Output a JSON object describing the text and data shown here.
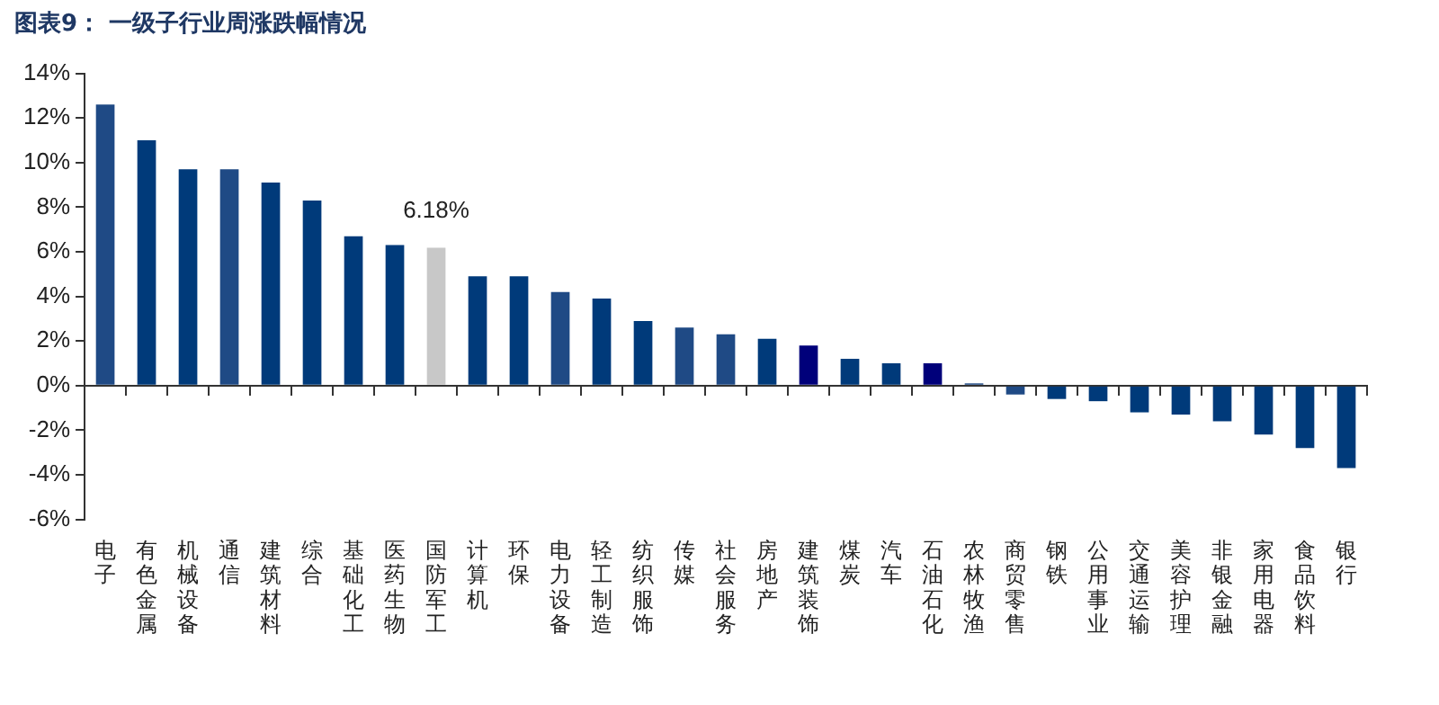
{
  "chart_data": {
    "type": "bar",
    "title": "图表9： 一级子行业周涨跌幅情况",
    "categories": [
      "电子",
      "有色金属",
      "机械设备",
      "通信",
      "建筑材料",
      "综合",
      "基础化工",
      "医药生物",
      "国防军工",
      "计算机",
      "环保",
      "电力设备",
      "轻工制造",
      "纺织服饰",
      "传媒",
      "社会服务",
      "房地产",
      "建筑装饰",
      "煤炭",
      "汽车",
      "石油石化",
      "农林牧渔",
      "商贸零售",
      "钢铁",
      "公用事业",
      "交通运输",
      "美容护理",
      "非银金融",
      "家用电器",
      "食品饮料",
      "银行"
    ],
    "values": [
      12.6,
      11.0,
      9.7,
      9.7,
      9.1,
      8.3,
      6.7,
      6.3,
      6.18,
      4.9,
      4.9,
      4.2,
      3.9,
      2.9,
      2.6,
      2.3,
      2.1,
      1.8,
      1.2,
      1.0,
      1.0,
      0.1,
      -0.4,
      -0.6,
      -0.7,
      -1.2,
      -1.3,
      -1.6,
      -2.2,
      -2.8,
      -3.7
    ],
    "colors": [
      "#1f4a85",
      "#003a7a",
      "#003a7a",
      "#1f4a85",
      "#003a7a",
      "#003a7a",
      "#003a7a",
      "#003a7a",
      "#c8c8c8",
      "#003a7a",
      "#003a7a",
      "#1f4a85",
      "#003a7a",
      "#003a7a",
      "#1f4a85",
      "#1f4a85",
      "#003a7a",
      "#00007a",
      "#003a7a",
      "#003a7a",
      "#00007a",
      "#1f4a85",
      "#1f4a85",
      "#003a7a",
      "#003a7a",
      "#003a7a",
      "#003a7a",
      "#003a7a",
      "#003a7a",
      "#003a7a",
      "#003a7a"
    ],
    "value_labels": [
      null,
      null,
      null,
      null,
      null,
      null,
      null,
      null,
      "6.18%",
      null,
      null,
      null,
      null,
      null,
      null,
      null,
      null,
      null,
      null,
      null,
      null,
      null,
      null,
      null,
      null,
      null,
      null,
      null,
      null,
      null,
      null
    ],
    "ylim": [
      -6,
      14
    ],
    "yticks": [
      {
        "value": -6,
        "label": "-6%"
      },
      {
        "value": -4,
        "label": "-4%"
      },
      {
        "value": -2,
        "label": "-2%"
      },
      {
        "value": 0,
        "label": "0%"
      },
      {
        "value": 2,
        "label": "2%"
      },
      {
        "value": 4,
        "label": "4%"
      },
      {
        "value": 6,
        "label": "6%"
      },
      {
        "value": 8,
        "label": "8%"
      },
      {
        "value": 10,
        "label": "10%"
      },
      {
        "value": 12,
        "label": "12%"
      },
      {
        "value": 14,
        "label": "14%"
      }
    ],
    "legend": false
  }
}
